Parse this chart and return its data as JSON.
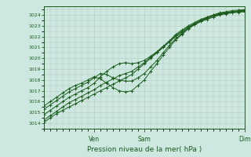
{
  "title": "",
  "xlabel": "Pression niveau de la mer( hPa )",
  "ylabel": "",
  "bg_color": "#cce8e0",
  "grid_color": "#b8c8c0",
  "line_color": "#1a5c1a",
  "xlim": [
    0,
    96
  ],
  "ylim": [
    1013.5,
    1024.8
  ],
  "yticks": [
    1014,
    1015,
    1016,
    1017,
    1018,
    1019,
    1020,
    1021,
    1022,
    1023,
    1024
  ],
  "xtick_positions": [
    24,
    48,
    96
  ],
  "xtick_labels": [
    "Ven",
    "Sam",
    "Dim"
  ],
  "series": [
    [
      0,
      1014.1,
      3,
      1014.5,
      6,
      1014.9,
      9,
      1015.2,
      12,
      1015.5,
      15,
      1015.8,
      18,
      1016.1,
      21,
      1016.4,
      24,
      1016.7,
      27,
      1017.0,
      30,
      1017.3,
      33,
      1017.6,
      36,
      1017.9,
      39,
      1018.2,
      42,
      1018.5,
      45,
      1019.0,
      48,
      1019.5,
      51,
      1020.0,
      54,
      1020.5,
      57,
      1021.0,
      60,
      1021.5,
      63,
      1022.0,
      66,
      1022.4,
      69,
      1022.8,
      72,
      1023.1,
      75,
      1023.4,
      78,
      1023.6,
      81,
      1023.8,
      84,
      1024.0,
      87,
      1024.1,
      90,
      1024.2,
      93,
      1024.25,
      96,
      1024.3
    ],
    [
      0,
      1014.3,
      3,
      1014.7,
      6,
      1015.1,
      9,
      1015.5,
      12,
      1015.9,
      15,
      1016.2,
      18,
      1016.5,
      21,
      1016.8,
      24,
      1017.1,
      27,
      1017.5,
      30,
      1017.8,
      33,
      1018.1,
      36,
      1018.4,
      39,
      1018.6,
      42,
      1018.8,
      45,
      1019.2,
      48,
      1019.6,
      51,
      1020.1,
      54,
      1020.6,
      57,
      1021.1,
      60,
      1021.6,
      63,
      1022.1,
      66,
      1022.5,
      69,
      1022.9,
      72,
      1023.2,
      75,
      1023.5,
      78,
      1023.7,
      81,
      1023.9,
      84,
      1024.1,
      87,
      1024.2,
      90,
      1024.3,
      93,
      1024.35,
      96,
      1024.4
    ],
    [
      0,
      1014.8,
      3,
      1015.2,
      6,
      1015.6,
      9,
      1016.0,
      12,
      1016.4,
      15,
      1016.7,
      18,
      1017.0,
      21,
      1017.3,
      24,
      1017.7,
      27,
      1018.3,
      30,
      1018.8,
      33,
      1019.2,
      36,
      1019.5,
      39,
      1019.6,
      42,
      1019.5,
      45,
      1019.6,
      48,
      1019.8,
      51,
      1020.2,
      54,
      1020.6,
      57,
      1021.1,
      60,
      1021.6,
      63,
      1022.2,
      66,
      1022.6,
      69,
      1023.0,
      72,
      1023.3,
      75,
      1023.6,
      78,
      1023.8,
      81,
      1024.0,
      84,
      1024.2,
      87,
      1024.3,
      90,
      1024.4,
      93,
      1024.45,
      96,
      1024.5
    ],
    [
      0,
      1015.3,
      3,
      1015.7,
      6,
      1016.1,
      9,
      1016.5,
      12,
      1016.9,
      15,
      1017.2,
      18,
      1017.5,
      21,
      1017.8,
      24,
      1018.2,
      27,
      1018.6,
      30,
      1018.5,
      33,
      1018.2,
      36,
      1018.0,
      39,
      1017.9,
      42,
      1017.9,
      45,
      1018.2,
      48,
      1018.6,
      51,
      1019.2,
      54,
      1019.8,
      57,
      1020.5,
      60,
      1021.2,
      63,
      1021.8,
      66,
      1022.3,
      69,
      1022.8,
      72,
      1023.2,
      75,
      1023.5,
      78,
      1023.8,
      81,
      1024.0,
      84,
      1024.15,
      87,
      1024.2,
      90,
      1024.3,
      93,
      1024.35,
      96,
      1024.4
    ],
    [
      0,
      1015.6,
      3,
      1016.0,
      6,
      1016.4,
      9,
      1016.8,
      12,
      1017.2,
      15,
      1017.5,
      18,
      1017.7,
      21,
      1018.0,
      24,
      1018.3,
      27,
      1018.1,
      30,
      1017.7,
      33,
      1017.3,
      36,
      1017.0,
      39,
      1016.9,
      42,
      1017.0,
      45,
      1017.5,
      48,
      1018.0,
      51,
      1018.8,
      54,
      1019.5,
      57,
      1020.3,
      60,
      1021.0,
      63,
      1021.7,
      66,
      1022.2,
      69,
      1022.7,
      72,
      1023.1,
      75,
      1023.4,
      78,
      1023.7,
      81,
      1023.9,
      84,
      1024.05,
      87,
      1024.15,
      90,
      1024.25,
      93,
      1024.3,
      96,
      1024.35
    ]
  ]
}
